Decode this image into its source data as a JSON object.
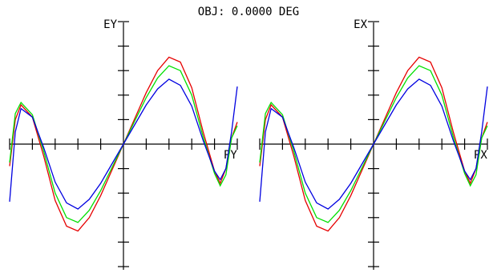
{
  "header": {
    "title": "OBJ: 0.0000 DEG"
  },
  "chart_data": [
    {
      "type": "line",
      "ylabel": "EY",
      "xlabel": "PY",
      "xlim": [
        -1,
        1
      ],
      "ylim": [
        -1,
        1
      ],
      "grid": false,
      "series": [
        {
          "color": "#e60000",
          "x": [
            -1.0,
            -0.95,
            -0.9,
            -0.8,
            -0.7,
            -0.6,
            -0.5,
            -0.4,
            -0.3,
            -0.2,
            -0.1,
            0.0,
            0.1,
            0.2,
            0.3,
            0.4,
            0.5,
            0.6,
            0.7,
            0.8,
            0.85,
            0.9,
            0.95,
            1.0
          ],
          "y": [
            -0.18,
            0.2,
            0.32,
            0.22,
            -0.1,
            -0.46,
            -0.67,
            -0.71,
            -0.6,
            -0.42,
            -0.21,
            0.0,
            0.21,
            0.42,
            0.6,
            0.71,
            0.67,
            0.46,
            0.1,
            -0.22,
            -0.32,
            -0.2,
            0.05,
            0.18
          ]
        },
        {
          "color": "#00e000",
          "x": [
            -1.0,
            -0.95,
            -0.9,
            -0.8,
            -0.7,
            -0.6,
            -0.5,
            -0.4,
            -0.3,
            -0.2,
            -0.1,
            0.0,
            0.1,
            0.2,
            0.3,
            0.4,
            0.5,
            0.6,
            0.7,
            0.8,
            0.85,
            0.9,
            0.95,
            1.0
          ],
          "y": [
            -0.15,
            0.25,
            0.34,
            0.24,
            -0.06,
            -0.4,
            -0.6,
            -0.64,
            -0.54,
            -0.38,
            -0.19,
            0.0,
            0.19,
            0.38,
            0.54,
            0.64,
            0.6,
            0.4,
            0.06,
            -0.24,
            -0.34,
            -0.25,
            0.05,
            0.15
          ]
        },
        {
          "color": "#0000e0",
          "x": [
            -1.0,
            -0.95,
            -0.9,
            -0.8,
            -0.7,
            -0.6,
            -0.5,
            -0.4,
            -0.3,
            -0.2,
            -0.1,
            0.0,
            0.1,
            0.2,
            0.3,
            0.4,
            0.5,
            0.6,
            0.7,
            0.8,
            0.85,
            0.9,
            0.95,
            1.0
          ],
          "y": [
            -0.47,
            0.1,
            0.29,
            0.22,
            -0.03,
            -0.31,
            -0.48,
            -0.53,
            -0.45,
            -0.32,
            -0.16,
            0.0,
            0.16,
            0.32,
            0.45,
            0.53,
            0.48,
            0.31,
            0.03,
            -0.22,
            -0.29,
            -0.2,
            0.1,
            0.47
          ]
        }
      ]
    },
    {
      "type": "line",
      "ylabel": "EX",
      "xlabel": "PX",
      "xlim": [
        -1,
        1
      ],
      "ylim": [
        -1,
        1
      ],
      "grid": false,
      "series": [
        {
          "color": "#e60000",
          "x": [
            -1.0,
            -0.95,
            -0.9,
            -0.8,
            -0.7,
            -0.6,
            -0.5,
            -0.4,
            -0.3,
            -0.2,
            -0.1,
            0.0,
            0.1,
            0.2,
            0.3,
            0.4,
            0.5,
            0.6,
            0.7,
            0.8,
            0.85,
            0.9,
            0.95,
            1.0
          ],
          "y": [
            -0.18,
            0.2,
            0.32,
            0.22,
            -0.1,
            -0.46,
            -0.67,
            -0.71,
            -0.6,
            -0.42,
            -0.21,
            0.0,
            0.21,
            0.42,
            0.6,
            0.71,
            0.67,
            0.46,
            0.1,
            -0.22,
            -0.32,
            -0.2,
            0.05,
            0.18
          ]
        },
        {
          "color": "#00e000",
          "x": [
            -1.0,
            -0.95,
            -0.9,
            -0.8,
            -0.7,
            -0.6,
            -0.5,
            -0.4,
            -0.3,
            -0.2,
            -0.1,
            0.0,
            0.1,
            0.2,
            0.3,
            0.4,
            0.5,
            0.6,
            0.7,
            0.8,
            0.85,
            0.9,
            0.95,
            1.0
          ],
          "y": [
            -0.15,
            0.25,
            0.34,
            0.24,
            -0.06,
            -0.4,
            -0.6,
            -0.64,
            -0.54,
            -0.38,
            -0.19,
            0.0,
            0.19,
            0.38,
            0.54,
            0.64,
            0.6,
            0.4,
            0.06,
            -0.24,
            -0.34,
            -0.25,
            0.05,
            0.15
          ]
        },
        {
          "color": "#0000e0",
          "x": [
            -1.0,
            -0.95,
            -0.9,
            -0.8,
            -0.7,
            -0.6,
            -0.5,
            -0.4,
            -0.3,
            -0.2,
            -0.1,
            0.0,
            0.1,
            0.2,
            0.3,
            0.4,
            0.5,
            0.6,
            0.7,
            0.8,
            0.85,
            0.9,
            0.95,
            1.0
          ],
          "y": [
            -0.47,
            0.1,
            0.29,
            0.22,
            -0.03,
            -0.31,
            -0.48,
            -0.53,
            -0.45,
            -0.32,
            -0.16,
            0.0,
            0.16,
            0.32,
            0.45,
            0.53,
            0.48,
            0.31,
            0.03,
            -0.22,
            -0.29,
            -0.2,
            0.1,
            0.47
          ]
        }
      ]
    }
  ]
}
